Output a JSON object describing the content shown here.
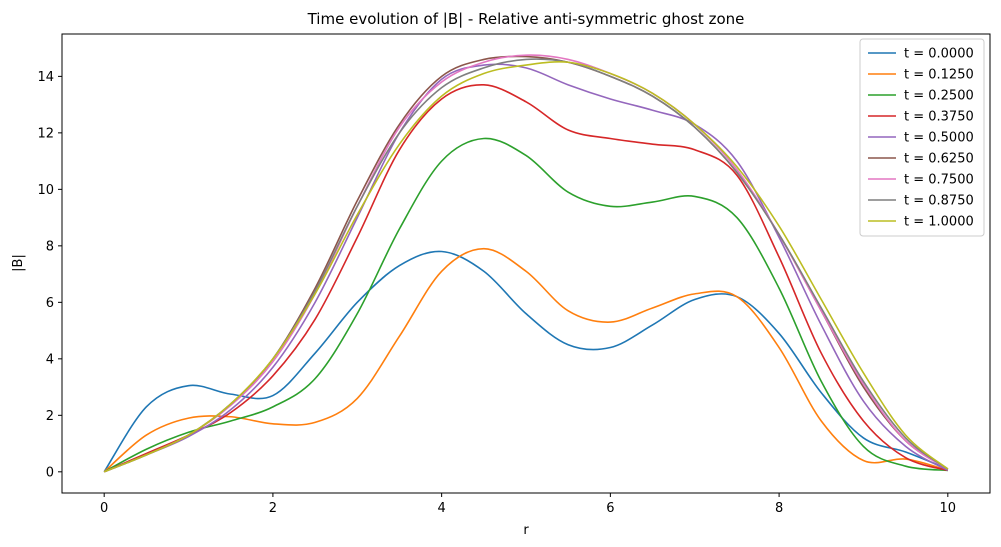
{
  "chart_data": {
    "type": "line",
    "title": "Time evolution of |B| - Relative anti-symmetric ghost zone",
    "xlabel": "r",
    "ylabel": "|B|",
    "xlim": [
      -0.5,
      10.5
    ],
    "ylim": [
      -0.75,
      15.5
    ],
    "x_ticks": [
      0,
      2,
      4,
      6,
      8,
      10
    ],
    "y_ticks": [
      0,
      2,
      4,
      6,
      8,
      10,
      12,
      14
    ],
    "grid": false,
    "legend_position": "top-right",
    "x": [
      0,
      0.5,
      1.0,
      1.5,
      2.0,
      2.5,
      3.0,
      3.5,
      4.0,
      4.5,
      5.0,
      5.5,
      6.0,
      6.5,
      7.0,
      7.5,
      8.0,
      8.5,
      9.0,
      9.5,
      10.0
    ],
    "series": [
      {
        "name": "t = 0.0000",
        "color": "#1f77b4",
        "values": [
          0,
          2.3,
          3.05,
          2.75,
          2.7,
          4.2,
          6.0,
          7.3,
          7.8,
          7.1,
          5.6,
          4.5,
          4.4,
          5.2,
          6.1,
          6.2,
          4.9,
          2.8,
          1.2,
          0.7,
          0.1
        ]
      },
      {
        "name": "t = 0.1250",
        "color": "#ff7f0e",
        "values": [
          0,
          1.3,
          1.9,
          1.95,
          1.7,
          1.75,
          2.6,
          4.8,
          7.1,
          7.9,
          7.1,
          5.7,
          5.3,
          5.8,
          6.3,
          6.2,
          4.4,
          1.8,
          0.4,
          0.45,
          0.05
        ]
      },
      {
        "name": "t = 0.2500",
        "color": "#2ca02c",
        "values": [
          0,
          0.8,
          1.4,
          1.8,
          2.3,
          3.3,
          5.6,
          8.6,
          11.0,
          11.8,
          11.2,
          9.9,
          9.4,
          9.55,
          9.75,
          9.0,
          6.5,
          3.2,
          0.9,
          0.2,
          0.05
        ]
      },
      {
        "name": "t = 0.3750",
        "color": "#d62728",
        "values": [
          0,
          0.65,
          1.3,
          2.1,
          3.4,
          5.4,
          8.3,
          11.4,
          13.2,
          13.7,
          13.1,
          12.1,
          11.8,
          11.6,
          11.4,
          10.5,
          7.6,
          4.2,
          1.8,
          0.5,
          0.05
        ]
      },
      {
        "name": "t = 0.5000",
        "color": "#9467bd",
        "values": [
          0,
          0.6,
          1.25,
          2.2,
          3.7,
          6.0,
          9.0,
          12.0,
          13.9,
          14.4,
          14.3,
          13.7,
          13.2,
          12.8,
          12.3,
          11.0,
          8.3,
          5.2,
          2.5,
          0.9,
          0.05
        ]
      },
      {
        "name": "t = 0.6250",
        "color": "#8c564b",
        "values": [
          0,
          0.6,
          1.3,
          2.4,
          4.0,
          6.5,
          9.6,
          12.3,
          14.0,
          14.6,
          14.7,
          14.5,
          14.0,
          13.3,
          12.2,
          10.6,
          8.4,
          5.7,
          3.0,
          1.1,
          0.1
        ]
      },
      {
        "name": "t = 0.7500",
        "color": "#e377c2",
        "values": [
          0,
          0.6,
          1.3,
          2.35,
          3.9,
          6.3,
          9.4,
          12.2,
          13.8,
          14.5,
          14.75,
          14.6,
          14.1,
          13.4,
          12.3,
          10.7,
          8.4,
          5.7,
          3.1,
          1.1,
          0.1
        ]
      },
      {
        "name": "t = 0.8750",
        "color": "#7f7f7f",
        "values": [
          0,
          0.6,
          1.3,
          2.4,
          4.0,
          6.4,
          9.4,
          12.0,
          13.6,
          14.3,
          14.6,
          14.5,
          14.0,
          13.3,
          12.2,
          10.6,
          8.4,
          5.8,
          3.2,
          1.2,
          0.1
        ]
      },
      {
        "name": "t = 1.0000",
        "color": "#bcbd22",
        "values": [
          0,
          0.6,
          1.3,
          2.4,
          4.0,
          6.3,
          9.1,
          11.6,
          13.3,
          14.1,
          14.4,
          14.5,
          14.1,
          13.4,
          12.3,
          10.8,
          8.7,
          6.1,
          3.5,
          1.3,
          0.1
        ]
      }
    ]
  }
}
